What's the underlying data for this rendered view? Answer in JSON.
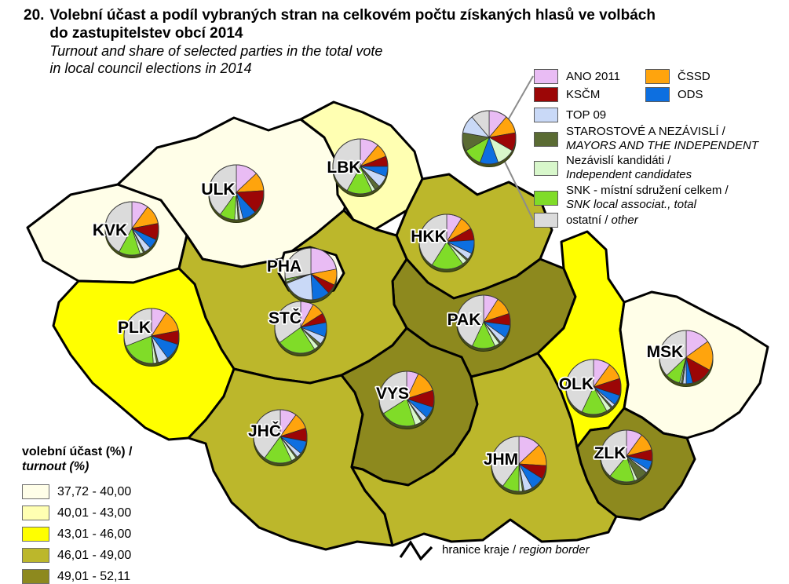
{
  "title": {
    "number": "20.",
    "cs1": "Volební účast a podíl vybraných stran na celkovém počtu získaných hlasů ve volbách",
    "cs2": "do zastupitelstev obcí 2014",
    "en1": "Turnout and share of selected parties in the total vote",
    "en2": "in local council elections in 2014"
  },
  "party_legend": {
    "items": [
      {
        "id": "ano",
        "color": "#E9BCF4",
        "lines": {
          "cs": "ANO 2011",
          "en": ""
        }
      },
      {
        "id": "cssd",
        "color": "#FFA40D",
        "lines": {
          "cs": "ČSSD",
          "en": ""
        }
      },
      {
        "id": "kscm",
        "color": "#9C0606",
        "lines": {
          "cs": "KSČM",
          "en": ""
        }
      },
      {
        "id": "ods",
        "color": "#0D6FE0",
        "lines": {
          "cs": "ODS",
          "en": ""
        }
      },
      {
        "id": "top09",
        "color": "#C9D9F7",
        "lines": {
          "cs": "TOP 09",
          "en": ""
        }
      },
      {
        "id": "stan",
        "color": "#5A6B33",
        "lines": {
          "cs": "STAROSTOVÉ A NEZÁVISLÍ /",
          "en": "MAYORS AND THE INDEPENDENT"
        }
      },
      {
        "id": "nez",
        "color": "#D8F7CB",
        "lines": {
          "cs": "Nezávislí kandidáti /",
          "en": "Independent candidates"
        }
      },
      {
        "id": "snk",
        "color": "#80DC28",
        "lines": {
          "cs": "SNK - místní sdružení celkem /",
          "en": "SNK local associat., total"
        }
      },
      {
        "id": "other",
        "color": "#DBDBDB",
        "lines": {
          "cs": "ostatní /",
          "en": "other"
        }
      }
    ]
  },
  "turnout_legend": {
    "title_cs": "volební účast (%) /",
    "title_en": "turnout (%)",
    "classes": [
      {
        "range": "37,72 - 40,00",
        "color": "#FFFEE8"
      },
      {
        "range": "40,01 - 43,00",
        "color": "#FFFFB2"
      },
      {
        "range": "43,01 - 46,00",
        "color": "#FFFF00"
      },
      {
        "range": "46,01 - 49,00",
        "color": "#BCB72B"
      },
      {
        "range": "49,01 - 52,11",
        "color": "#8D891E"
      }
    ]
  },
  "border_legend": {
    "cs": "hranice kraje /",
    "en": "region border"
  },
  "chart_data": {
    "type": "map-pie",
    "description": "Choropleth of 2014 municipal-election turnout by Czech region (kraj) with pie charts of party vote shares (%, estimated from figure)",
    "slice_order": [
      "ano",
      "cssd",
      "kscm",
      "ods",
      "top09",
      "stan",
      "nez",
      "snk",
      "other"
    ],
    "legend_pie": {
      "slice_order": [
        "ano",
        "cssd",
        "kscm",
        "nez",
        "ods",
        "snk",
        "stan",
        "top09",
        "other"
      ],
      "equal_slices": true
    },
    "regions": [
      {
        "code": "KVK",
        "turnout_range": "37,72 - 40,00",
        "class_index": 0,
        "pie": {
          "ano": 10,
          "cssd": 12,
          "kscm": 10,
          "ods": 6,
          "top09": 4,
          "stan": 1,
          "nez": 2,
          "snk": 13,
          "other": 42
        }
      },
      {
        "code": "ULK",
        "turnout_range": "37,72 - 40,00",
        "class_index": 0,
        "pie": {
          "ano": 13,
          "cssd": 11,
          "kscm": 14,
          "ods": 8,
          "top09": 2,
          "stan": 1,
          "nez": 2,
          "snk": 9,
          "other": 40
        }
      },
      {
        "code": "LBK",
        "turnout_range": "40,01 - 43,00",
        "class_index": 1,
        "pie": {
          "ano": 11,
          "cssd": 8,
          "kscm": 6,
          "ods": 6,
          "top09": 7,
          "stan": 3,
          "nez": 2,
          "snk": 15,
          "other": 42
        }
      },
      {
        "code": "HKK",
        "turnout_range": "46,01 - 49,00",
        "class_index": 3,
        "pie": {
          "ano": 9,
          "cssd": 8,
          "kscm": 7,
          "ods": 8,
          "top09": 4,
          "stan": 1,
          "nez": 3,
          "snk": 19,
          "other": 41
        }
      },
      {
        "code": "PAK",
        "turnout_range": "49,01 - 52,11",
        "class_index": 4,
        "pie": {
          "ano": 9,
          "cssd": 11,
          "kscm": 7,
          "ods": 8,
          "top09": 4,
          "stan": 1,
          "nez": 3,
          "snk": 14,
          "other": 43
        }
      },
      {
        "code": "PHA",
        "turnout_range": "37,72 - 40,00",
        "class_index": 0,
        "pie": {
          "ano": 22,
          "cssd": 10,
          "kscm": 6,
          "ods": 11,
          "top09": 20,
          "stan": 1,
          "nez": 1,
          "snk": 1,
          "other": 28
        }
      },
      {
        "code": "STČ",
        "turnout_range": "46,01 - 49,00",
        "class_index": 3,
        "pie": {
          "ano": 8,
          "cssd": 8,
          "kscm": 6,
          "ods": 9,
          "top09": 5,
          "stan": 2,
          "nez": 3,
          "snk": 24,
          "other": 35
        }
      },
      {
        "code": "PLK",
        "turnout_range": "43,01 - 46,00",
        "class_index": 2,
        "pie": {
          "ano": 9,
          "cssd": 13,
          "kscm": 8,
          "ods": 10,
          "top09": 6,
          "stan": 1,
          "nez": 2,
          "snk": 20,
          "other": 31
        }
      },
      {
        "code": "JHČ",
        "turnout_range": "46,01 - 49,00",
        "class_index": 3,
        "pie": {
          "ano": 10,
          "cssd": 10,
          "kscm": 8,
          "ods": 8,
          "top09": 3,
          "stan": 1,
          "nez": 3,
          "snk": 17,
          "other": 40
        }
      },
      {
        "code": "VYS",
        "turnout_range": "49,01 - 52,11",
        "class_index": 4,
        "pie": {
          "ano": 7,
          "cssd": 13,
          "kscm": 10,
          "ods": 7,
          "top09": 3,
          "stan": 1,
          "nez": 4,
          "snk": 21,
          "other": 34
        }
      },
      {
        "code": "JHM",
        "turnout_range": "46,01 - 49,00",
        "class_index": 3,
        "pie": {
          "ano": 13,
          "cssd": 13,
          "kscm": 8,
          "ods": 8,
          "top09": 5,
          "stan": 1,
          "nez": 2,
          "snk": 10,
          "other": 40
        }
      },
      {
        "code": "OLK",
        "turnout_range": "43,01 - 46,00",
        "class_index": 2,
        "pie": {
          "ano": 10,
          "cssd": 10,
          "kscm": 10,
          "ods": 6,
          "top09": 2,
          "stan": 1,
          "nez": 3,
          "snk": 15,
          "other": 43
        }
      },
      {
        "code": "MSK",
        "turnout_range": "37,72 - 40,00",
        "class_index": 0,
        "pie": {
          "ano": 15,
          "cssd": 18,
          "kscm": 13,
          "ods": 4,
          "top09": 2,
          "stan": 1,
          "nez": 1,
          "snk": 9,
          "other": 37
        }
      },
      {
        "code": "ZLK",
        "turnout_range": "49,01 - 52,11",
        "class_index": 4,
        "pie": {
          "ano": 10,
          "cssd": 11,
          "kscm": 7,
          "ods": 6,
          "top09": 2,
          "stan": 7,
          "nez": 2,
          "snk": 16,
          "other": 39
        }
      }
    ]
  }
}
